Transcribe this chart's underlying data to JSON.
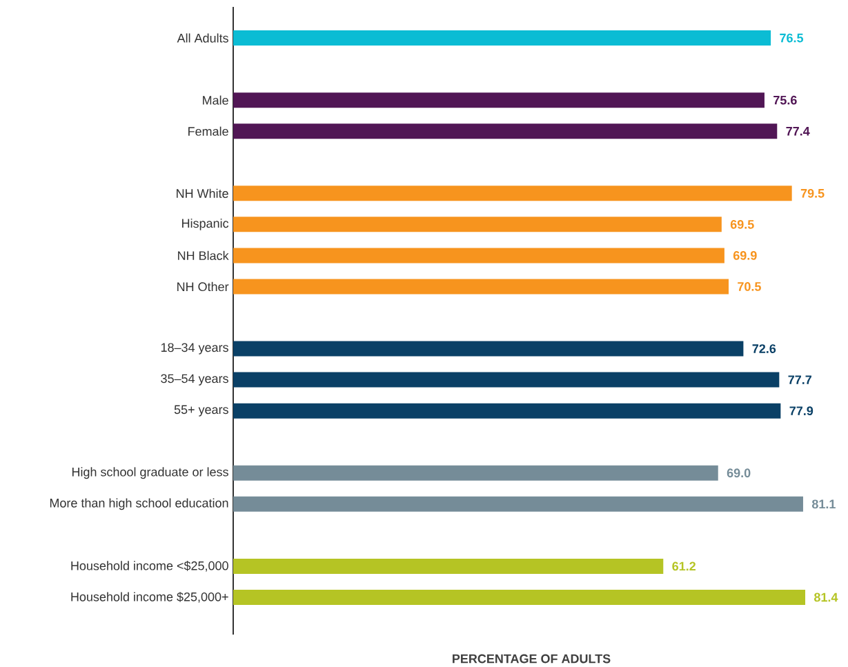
{
  "chart_data": {
    "type": "bar",
    "orientation": "horizontal",
    "xlabel": "PERCENTAGE OF ADULTS",
    "categories": [
      "All Adults",
      null,
      "Male",
      "Female",
      null,
      "NH White",
      "Hispanic",
      "NH Black",
      "NH Other",
      null,
      "18–34 years",
      "35–54 years",
      "55+ years",
      null,
      "High school graduate or less",
      "More than high school education",
      null,
      "Household income <$25,000",
      "Household income $25,000+"
    ],
    "values": [
      76.5,
      null,
      75.6,
      77.4,
      null,
      79.5,
      69.5,
      69.9,
      70.5,
      null,
      72.6,
      77.7,
      77.9,
      null,
      69.0,
      81.1,
      null,
      61.2,
      81.4
    ],
    "colors": [
      "#0bbcd4",
      null,
      "#511655",
      "#511655",
      null,
      "#f7941e",
      "#f7941e",
      "#f7941e",
      "#f7941e",
      null,
      "#0a4066",
      "#0a4066",
      "#0a4066",
      null,
      "#758c98",
      "#758c98",
      null,
      "#b5c424",
      "#b5c424"
    ],
    "value_labels": [
      "76.5",
      null,
      "75.6",
      "77.4",
      null,
      "79.5",
      "69.5",
      "69.9",
      "70.5",
      null,
      "72.6",
      "77.7",
      "77.9",
      null,
      "69.0",
      "81.1",
      null,
      "61.2",
      "81.4"
    ]
  }
}
